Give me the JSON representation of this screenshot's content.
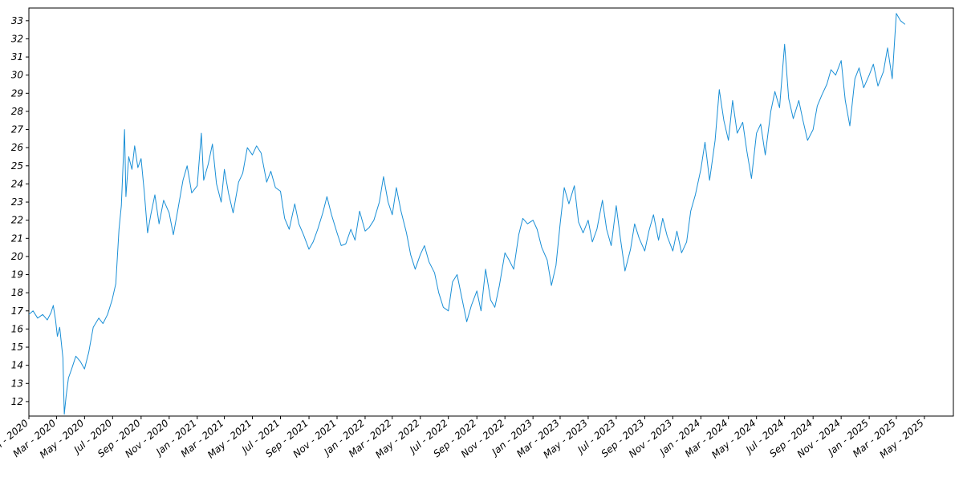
{
  "chart_data": {
    "type": "line",
    "title": "",
    "xlabel": "",
    "ylabel": "",
    "x_range": [
      "2020-01-01",
      "2025-07-03"
    ],
    "ylim": [
      11.2,
      33.7
    ],
    "y_ticks": [
      12,
      13,
      14,
      15,
      16,
      17,
      18,
      19,
      20,
      21,
      22,
      23,
      24,
      25,
      26,
      27,
      28,
      29,
      30,
      31,
      32,
      33
    ],
    "x_ticks": [
      {
        "date": "2020-01-01",
        "label": "Jan - 2020"
      },
      {
        "date": "2020-03-01",
        "label": "Mar - 2020"
      },
      {
        "date": "2020-05-01",
        "label": "May - 2020"
      },
      {
        "date": "2020-07-01",
        "label": "Jul - 2020"
      },
      {
        "date": "2020-09-01",
        "label": "Sep - 2020"
      },
      {
        "date": "2020-11-01",
        "label": "Nov - 2020"
      },
      {
        "date": "2021-01-01",
        "label": "Jan - 2021"
      },
      {
        "date": "2021-03-01",
        "label": "Mar - 2021"
      },
      {
        "date": "2021-05-01",
        "label": "May - 2021"
      },
      {
        "date": "2021-07-01",
        "label": "Jul - 2021"
      },
      {
        "date": "2021-09-01",
        "label": "Sep - 2021"
      },
      {
        "date": "2021-11-01",
        "label": "Nov - 2021"
      },
      {
        "date": "2022-01-01",
        "label": "Jan - 2022"
      },
      {
        "date": "2022-03-01",
        "label": "Mar - 2022"
      },
      {
        "date": "2022-05-01",
        "label": "May - 2022"
      },
      {
        "date": "2022-07-01",
        "label": "Jul - 2022"
      },
      {
        "date": "2022-09-01",
        "label": "Sep - 2022"
      },
      {
        "date": "2022-11-01",
        "label": "Nov - 2022"
      },
      {
        "date": "2023-01-01",
        "label": "Jan - 2023"
      },
      {
        "date": "2023-03-01",
        "label": "Mar - 2023"
      },
      {
        "date": "2023-05-01",
        "label": "May - 2023"
      },
      {
        "date": "2023-07-01",
        "label": "Jul - 2023"
      },
      {
        "date": "2023-09-01",
        "label": "Sep - 2023"
      },
      {
        "date": "2023-11-01",
        "label": "Nov - 2023"
      },
      {
        "date": "2024-01-01",
        "label": "Jan - 2024"
      },
      {
        "date": "2024-03-01",
        "label": "Mar - 2024"
      },
      {
        "date": "2024-05-01",
        "label": "May - 2024"
      },
      {
        "date": "2024-07-01",
        "label": "Jul - 2024"
      },
      {
        "date": "2024-09-01",
        "label": "Sep - 2024"
      },
      {
        "date": "2024-11-01",
        "label": "Nov - 2024"
      },
      {
        "date": "2025-01-01",
        "label": "Jan - 2025"
      },
      {
        "date": "2025-03-01",
        "label": "Mar - 2025"
      },
      {
        "date": "2025-05-01",
        "label": "May - 2025"
      }
    ],
    "grid": false,
    "series": [
      {
        "color": "#1a8fd6",
        "points": [
          [
            "2020-01-01",
            16.8
          ],
          [
            "2020-01-10",
            17.0
          ],
          [
            "2020-01-20",
            16.6
          ],
          [
            "2020-01-31",
            16.8
          ],
          [
            "2020-02-10",
            16.5
          ],
          [
            "2020-02-18",
            16.9
          ],
          [
            "2020-02-23",
            17.3
          ],
          [
            "2020-02-28",
            16.5
          ],
          [
            "2020-03-03",
            15.6
          ],
          [
            "2020-03-08",
            16.1
          ],
          [
            "2020-03-15",
            14.4
          ],
          [
            "2020-03-18",
            11.3
          ],
          [
            "2020-03-22",
            12.3
          ],
          [
            "2020-03-27",
            13.3
          ],
          [
            "2020-04-03",
            13.8
          ],
          [
            "2020-04-12",
            14.5
          ],
          [
            "2020-04-22",
            14.2
          ],
          [
            "2020-05-01",
            13.8
          ],
          [
            "2020-05-10",
            14.7
          ],
          [
            "2020-05-20",
            16.1
          ],
          [
            "2020-06-01",
            16.6
          ],
          [
            "2020-06-10",
            16.3
          ],
          [
            "2020-06-20",
            16.8
          ],
          [
            "2020-06-30",
            17.6
          ],
          [
            "2020-07-08",
            18.5
          ],
          [
            "2020-07-15",
            21.5
          ],
          [
            "2020-07-20",
            22.8
          ],
          [
            "2020-07-27",
            27.0
          ],
          [
            "2020-07-30",
            23.3
          ],
          [
            "2020-08-05",
            25.5
          ],
          [
            "2020-08-12",
            24.8
          ],
          [
            "2020-08-18",
            26.1
          ],
          [
            "2020-08-25",
            24.9
          ],
          [
            "2020-09-01",
            25.4
          ],
          [
            "2020-09-08",
            23.5
          ],
          [
            "2020-09-15",
            21.3
          ],
          [
            "2020-09-22",
            22.3
          ],
          [
            "2020-10-01",
            23.4
          ],
          [
            "2020-10-10",
            21.8
          ],
          [
            "2020-10-20",
            23.1
          ],
          [
            "2020-11-01",
            22.4
          ],
          [
            "2020-11-10",
            21.2
          ],
          [
            "2020-11-20",
            22.6
          ],
          [
            "2020-12-01",
            24.2
          ],
          [
            "2020-12-10",
            25.0
          ],
          [
            "2020-12-20",
            23.5
          ],
          [
            "2021-01-01",
            23.9
          ],
          [
            "2021-01-10",
            26.8
          ],
          [
            "2021-01-15",
            24.2
          ],
          [
            "2021-01-25",
            25.1
          ],
          [
            "2021-02-03",
            26.2
          ],
          [
            "2021-02-12",
            24.0
          ],
          [
            "2021-02-22",
            23.0
          ],
          [
            "2021-03-01",
            24.8
          ],
          [
            "2021-03-10",
            23.5
          ],
          [
            "2021-03-20",
            22.4
          ],
          [
            "2021-04-01",
            24.1
          ],
          [
            "2021-04-10",
            24.6
          ],
          [
            "2021-04-20",
            26.0
          ],
          [
            "2021-05-01",
            25.6
          ],
          [
            "2021-05-10",
            26.1
          ],
          [
            "2021-05-20",
            25.7
          ],
          [
            "2021-06-01",
            24.1
          ],
          [
            "2021-06-10",
            24.7
          ],
          [
            "2021-06-20",
            23.8
          ],
          [
            "2021-07-01",
            23.6
          ],
          [
            "2021-07-10",
            22.1
          ],
          [
            "2021-07-20",
            21.5
          ],
          [
            "2021-08-01",
            22.9
          ],
          [
            "2021-08-10",
            21.8
          ],
          [
            "2021-08-20",
            21.2
          ],
          [
            "2021-09-01",
            20.4
          ],
          [
            "2021-09-10",
            20.8
          ],
          [
            "2021-09-20",
            21.5
          ],
          [
            "2021-10-01",
            22.4
          ],
          [
            "2021-10-10",
            23.3
          ],
          [
            "2021-10-20",
            22.3
          ],
          [
            "2021-11-01",
            21.3
          ],
          [
            "2021-11-10",
            20.6
          ],
          [
            "2021-11-20",
            20.7
          ],
          [
            "2021-12-01",
            21.5
          ],
          [
            "2021-12-10",
            20.9
          ],
          [
            "2021-12-20",
            22.5
          ],
          [
            "2022-01-01",
            21.4
          ],
          [
            "2022-01-10",
            21.6
          ],
          [
            "2022-01-20",
            22.0
          ],
          [
            "2022-02-01",
            23.0
          ],
          [
            "2022-02-10",
            24.4
          ],
          [
            "2022-02-20",
            23.0
          ],
          [
            "2022-03-01",
            22.3
          ],
          [
            "2022-03-10",
            23.8
          ],
          [
            "2022-03-20",
            22.5
          ],
          [
            "2022-04-01",
            21.3
          ],
          [
            "2022-04-10",
            20.1
          ],
          [
            "2022-04-20",
            19.3
          ],
          [
            "2022-05-01",
            20.1
          ],
          [
            "2022-05-10",
            20.6
          ],
          [
            "2022-05-20",
            19.7
          ],
          [
            "2022-06-01",
            19.1
          ],
          [
            "2022-06-10",
            18.0
          ],
          [
            "2022-06-20",
            17.2
          ],
          [
            "2022-07-01",
            17.0
          ],
          [
            "2022-07-10",
            18.6
          ],
          [
            "2022-07-20",
            19.0
          ],
          [
            "2022-08-01",
            17.5
          ],
          [
            "2022-08-10",
            16.4
          ],
          [
            "2022-08-20",
            17.3
          ],
          [
            "2022-09-01",
            18.1
          ],
          [
            "2022-09-10",
            17.0
          ],
          [
            "2022-09-20",
            19.3
          ],
          [
            "2022-10-01",
            17.6
          ],
          [
            "2022-10-10",
            17.2
          ],
          [
            "2022-10-20",
            18.4
          ],
          [
            "2022-11-01",
            20.2
          ],
          [
            "2022-11-10",
            19.8
          ],
          [
            "2022-11-20",
            19.3
          ],
          [
            "2022-12-01",
            21.2
          ],
          [
            "2022-12-10",
            22.1
          ],
          [
            "2022-12-20",
            21.8
          ],
          [
            "2023-01-01",
            22.0
          ],
          [
            "2023-01-10",
            21.5
          ],
          [
            "2023-01-20",
            20.5
          ],
          [
            "2023-02-01",
            19.8
          ],
          [
            "2023-02-10",
            18.4
          ],
          [
            "2023-02-20",
            19.5
          ],
          [
            "2023-03-01",
            21.8
          ],
          [
            "2023-03-10",
            23.8
          ],
          [
            "2023-03-20",
            22.9
          ],
          [
            "2023-04-01",
            23.9
          ],
          [
            "2023-04-10",
            21.9
          ],
          [
            "2023-04-20",
            21.3
          ],
          [
            "2023-05-01",
            22.0
          ],
          [
            "2023-05-10",
            20.8
          ],
          [
            "2023-05-20",
            21.5
          ],
          [
            "2023-06-01",
            23.1
          ],
          [
            "2023-06-10",
            21.5
          ],
          [
            "2023-06-20",
            20.6
          ],
          [
            "2023-07-01",
            22.8
          ],
          [
            "2023-07-10",
            21.0
          ],
          [
            "2023-07-20",
            19.2
          ],
          [
            "2023-08-01",
            20.4
          ],
          [
            "2023-08-10",
            21.8
          ],
          [
            "2023-08-20",
            21.0
          ],
          [
            "2023-09-01",
            20.3
          ],
          [
            "2023-09-10",
            21.4
          ],
          [
            "2023-09-20",
            22.3
          ],
          [
            "2023-10-01",
            20.9
          ],
          [
            "2023-10-10",
            22.1
          ],
          [
            "2023-10-20",
            21.1
          ],
          [
            "2023-11-01",
            20.3
          ],
          [
            "2023-11-10",
            21.4
          ],
          [
            "2023-11-20",
            20.2
          ],
          [
            "2023-12-01",
            20.8
          ],
          [
            "2023-12-10",
            22.5
          ],
          [
            "2023-12-20",
            23.4
          ],
          [
            "2024-01-01",
            24.8
          ],
          [
            "2024-01-10",
            26.3
          ],
          [
            "2024-01-20",
            24.2
          ],
          [
            "2024-02-01",
            26.4
          ],
          [
            "2024-02-10",
            29.2
          ],
          [
            "2024-02-20",
            27.5
          ],
          [
            "2024-03-01",
            26.4
          ],
          [
            "2024-03-10",
            28.6
          ],
          [
            "2024-03-20",
            26.8
          ],
          [
            "2024-04-01",
            27.4
          ],
          [
            "2024-04-10",
            25.8
          ],
          [
            "2024-04-20",
            24.3
          ],
          [
            "2024-05-01",
            26.8
          ],
          [
            "2024-05-10",
            27.3
          ],
          [
            "2024-05-20",
            25.6
          ],
          [
            "2024-06-01",
            28.0
          ],
          [
            "2024-06-10",
            29.1
          ],
          [
            "2024-06-20",
            28.2
          ],
          [
            "2024-07-01",
            31.7
          ],
          [
            "2024-07-10",
            28.7
          ],
          [
            "2024-07-20",
            27.6
          ],
          [
            "2024-08-01",
            28.6
          ],
          [
            "2024-08-10",
            27.5
          ],
          [
            "2024-08-20",
            26.4
          ],
          [
            "2024-09-01",
            27.0
          ],
          [
            "2024-09-10",
            28.3
          ],
          [
            "2024-09-20",
            28.9
          ],
          [
            "2024-10-01",
            29.5
          ],
          [
            "2024-10-10",
            30.3
          ],
          [
            "2024-10-20",
            30.0
          ],
          [
            "2024-11-01",
            30.8
          ],
          [
            "2024-11-10",
            28.6
          ],
          [
            "2024-11-20",
            27.2
          ],
          [
            "2024-12-01",
            29.8
          ],
          [
            "2024-12-10",
            30.4
          ],
          [
            "2024-12-20",
            29.3
          ],
          [
            "2025-01-01",
            30.0
          ],
          [
            "2025-01-10",
            30.6
          ],
          [
            "2025-01-20",
            29.4
          ],
          [
            "2025-02-01",
            30.2
          ],
          [
            "2025-02-10",
            31.5
          ],
          [
            "2025-02-20",
            29.8
          ],
          [
            "2025-03-01",
            33.4
          ],
          [
            "2025-03-10",
            33.0
          ],
          [
            "2025-03-20",
            32.8
          ]
        ]
      }
    ]
  }
}
